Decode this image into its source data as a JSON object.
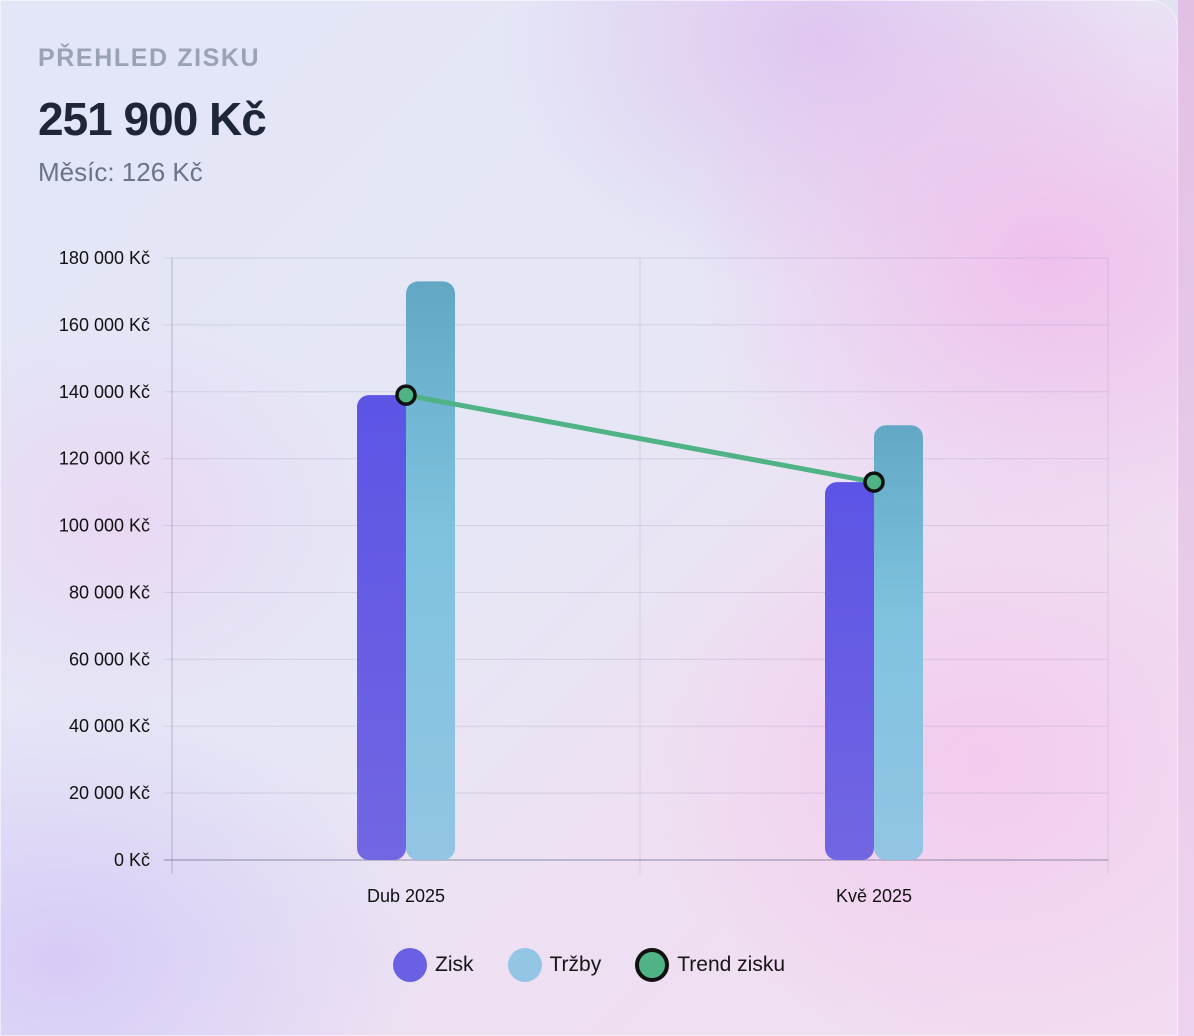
{
  "header": {
    "eyebrow": "PŘEHLED ZISKU",
    "total": "251 900 Kč",
    "month_line": "Měsíc: 126 Kč"
  },
  "colors": {
    "zisk": "#5f57e6",
    "trzby": "#8cc3e3",
    "trend": "#4fb385",
    "trend_marker_border": "#111111"
  },
  "chart_data": {
    "type": "bar",
    "categories": [
      "Dub 2025",
      "Kvě 2025"
    ],
    "series": [
      {
        "name": "Zisk",
        "type": "bar",
        "values": [
          139000,
          113000
        ]
      },
      {
        "name": "Tržby",
        "type": "bar",
        "values": [
          173000,
          130000
        ]
      },
      {
        "name": "Trend zisku",
        "type": "line",
        "values": [
          139000,
          113000
        ]
      }
    ],
    "ylim": [
      0,
      180000
    ],
    "yticks": [
      0,
      20000,
      40000,
      60000,
      80000,
      100000,
      120000,
      140000,
      160000,
      180000
    ],
    "ytick_labels": [
      "0 Kč",
      "20 000 Kč",
      "40 000 Kč",
      "60 000 Kč",
      "80 000 Kč",
      "100 000 Kč",
      "120 000 Kč",
      "140 000 Kč",
      "160 000 Kč",
      "180 000 Kč"
    ],
    "grid": true,
    "legend_position": "bottom"
  },
  "legend": [
    {
      "label": "Zisk",
      "icon": "zisk-swatch"
    },
    {
      "label": "Tržby",
      "icon": "trzby-swatch"
    },
    {
      "label": "Trend zisku",
      "icon": "trend-swatch"
    }
  ]
}
